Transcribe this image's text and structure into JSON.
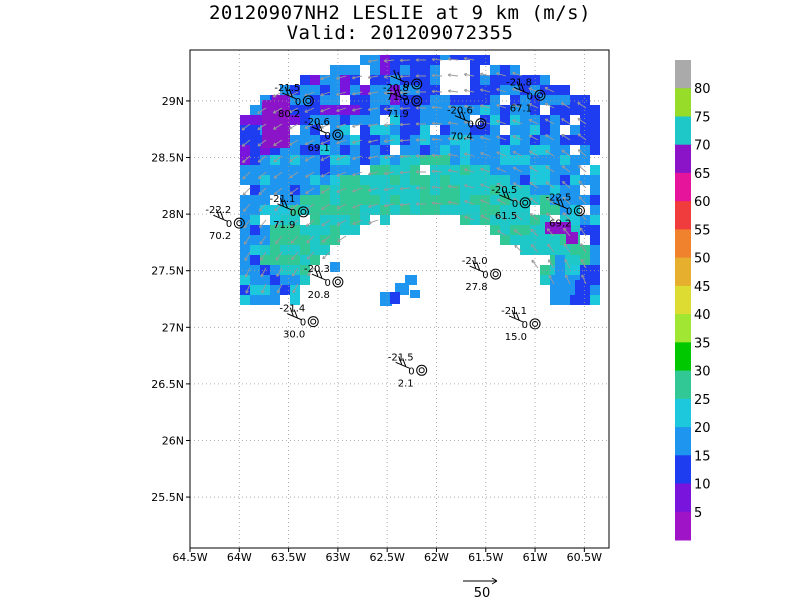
{
  "title": {
    "line1": "20120907NH2 LESLIE at 9 km (m/s)",
    "line2": "Valid: 201209072355"
  },
  "map": {
    "lon_ticks": [
      "64.5W",
      "64W",
      "63.5W",
      "63W",
      "62.5W",
      "62W",
      "61.5W",
      "61W",
      "60.5W"
    ],
    "lat_ticks": [
      "29N",
      "28.5N",
      "28N",
      "27.5N",
      "27N",
      "26.5N",
      "26N",
      "25.5N"
    ],
    "gridlines": true
  },
  "colorbar": {
    "labels": [
      "80",
      "75",
      "70",
      "65",
      "60",
      "55",
      "50",
      "45",
      "40",
      "35",
      "30",
      "25",
      "20",
      "15",
      "10",
      "5"
    ],
    "colors": [
      "#aaaaaa",
      "#96dc28",
      "#1ec8c8",
      "#8c14c8",
      "#e6149b",
      "#f03c3c",
      "#f0822d",
      "#e6af2d",
      "#dcdc32",
      "#a0e632",
      "#00c800",
      "#32c896",
      "#1ec8dc",
      "#1e96f0",
      "#1e3cf0",
      "#7814dc",
      "#a014c8"
    ]
  },
  "legend": {
    "vector_label": "50"
  },
  "stations": [
    {
      "top": "",
      "mid": "0",
      "bot": "71.5",
      "lon": -62.2,
      "lat": 29.15
    },
    {
      "top": "-21.5",
      "mid": "0",
      "bot": "80.2",
      "lon": -63.3,
      "lat": 29.0
    },
    {
      "top": "-20.8",
      "mid": "0",
      "bot": "71.9",
      "lon": -62.2,
      "lat": 29.0
    },
    {
      "top": "-21.8",
      "mid": "0",
      "bot": "67.1",
      "lon": -60.95,
      "lat": 29.05
    },
    {
      "top": "-20.6",
      "mid": "0",
      "bot": "69.1",
      "lon": -63.0,
      "lat": 28.7
    },
    {
      "top": "-20.6",
      "mid": "0",
      "bot": "70.4",
      "lon": -61.55,
      "lat": 28.8
    },
    {
      "top": "-21.1",
      "mid": "0",
      "bot": "71.9",
      "lon": -63.35,
      "lat": 28.02
    },
    {
      "top": "-22.2",
      "mid": "0",
      "bot": "70.2",
      "lon": -64.0,
      "lat": 27.92
    },
    {
      "top": "-20.5",
      "mid": "0",
      "bot": "61.5",
      "lon": -61.1,
      "lat": 28.1
    },
    {
      "top": "-22.5",
      "mid": "0",
      "bot": "69.2",
      "lon": -60.55,
      "lat": 28.03
    },
    {
      "top": "-20.3",
      "mid": "0",
      "bot": "20.8",
      "lon": -63.0,
      "lat": 27.4
    },
    {
      "top": "-21.0",
      "mid": "0",
      "bot": "27.8",
      "lon": -61.4,
      "lat": 27.47
    },
    {
      "top": "-21.4",
      "mid": "0",
      "bot": "30.0",
      "lon": -63.25,
      "lat": 27.05
    },
    {
      "top": "-21.1",
      "mid": "0",
      "bot": "15.0",
      "lon": -61.0,
      "lat": 27.03
    },
    {
      "top": "-21.5",
      "mid": "0",
      "bot": "2.1",
      "lon": -62.15,
      "lat": 26.62
    }
  ]
}
